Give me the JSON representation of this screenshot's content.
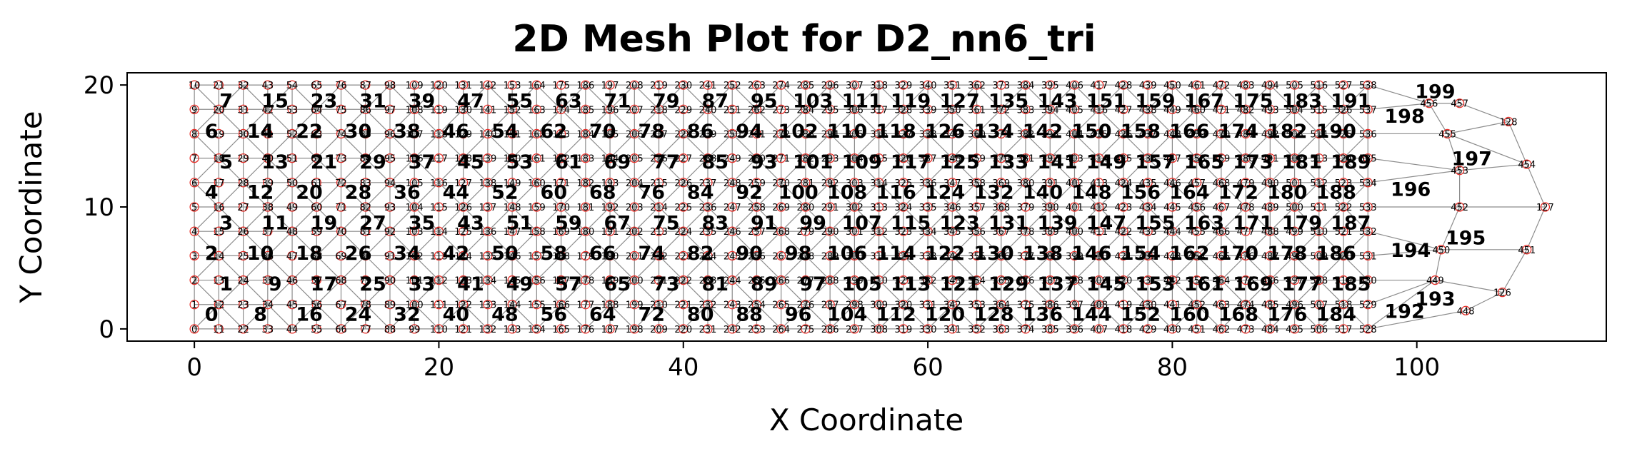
{
  "chart_data": {
    "type": "mesh",
    "title": "2D Mesh Plot for D2_nn6_tri",
    "xlabel": "X Coordinate",
    "ylabel": "Y Coordinate",
    "xlim": [
      -5.5,
      115.5
    ],
    "ylim": [
      -1,
      21
    ],
    "xticks": [
      0,
      20,
      40,
      60,
      80,
      100
    ],
    "yticks": [
      0,
      10,
      20
    ],
    "grid": false,
    "legend": false,
    "colors": {
      "edges": "#8c8c8c",
      "nodes": "#e8302a",
      "frame": "#000000"
    },
    "grid_block": {
      "columns": 49,
      "rows": 11,
      "x_start": 0,
      "x_step": 2,
      "y_start": 0,
      "y_step": 2,
      "first_element_id": 0,
      "element_ids_per_column_pair": 8
    },
    "end_nodes": [
      {
        "x": 104,
        "y": 1.5,
        "label": "448"
      },
      {
        "x": 107,
        "y": 3,
        "label": "126"
      },
      {
        "x": 101.5,
        "y": 4,
        "label": "449"
      },
      {
        "x": 102,
        "y": 6.5,
        "label": "450"
      },
      {
        "x": 109,
        "y": 6.5,
        "label": "451"
      },
      {
        "x": 103.5,
        "y": 10,
        "label": "452"
      },
      {
        "x": 110.5,
        "y": 10,
        "label": "127"
      },
      {
        "x": 103.5,
        "y": 13,
        "label": "453"
      },
      {
        "x": 109,
        "y": 13.5,
        "label": "454"
      },
      {
        "x": 102.5,
        "y": 16,
        "label": "455"
      },
      {
        "x": 107.5,
        "y": 17,
        "label": "128"
      },
      {
        "x": 101,
        "y": 18.5,
        "label": "456"
      },
      {
        "x": 103.5,
        "y": 18.5,
        "label": "457"
      }
    ],
    "end_elements": [
      {
        "x": 99,
        "y": 1.5,
        "label": "192"
      },
      {
        "x": 101.5,
        "y": 2.5,
        "label": "193"
      },
      {
        "x": 99.5,
        "y": 6.5,
        "label": "194"
      },
      {
        "x": 104,
        "y": 7.5,
        "label": "195"
      },
      {
        "x": 99.5,
        "y": 11.5,
        "label": "196"
      },
      {
        "x": 104.5,
        "y": 14,
        "label": "197"
      },
      {
        "x": 99,
        "y": 17.5,
        "label": "198"
      },
      {
        "x": 101.5,
        "y": 19.5,
        "label": "199"
      }
    ]
  }
}
